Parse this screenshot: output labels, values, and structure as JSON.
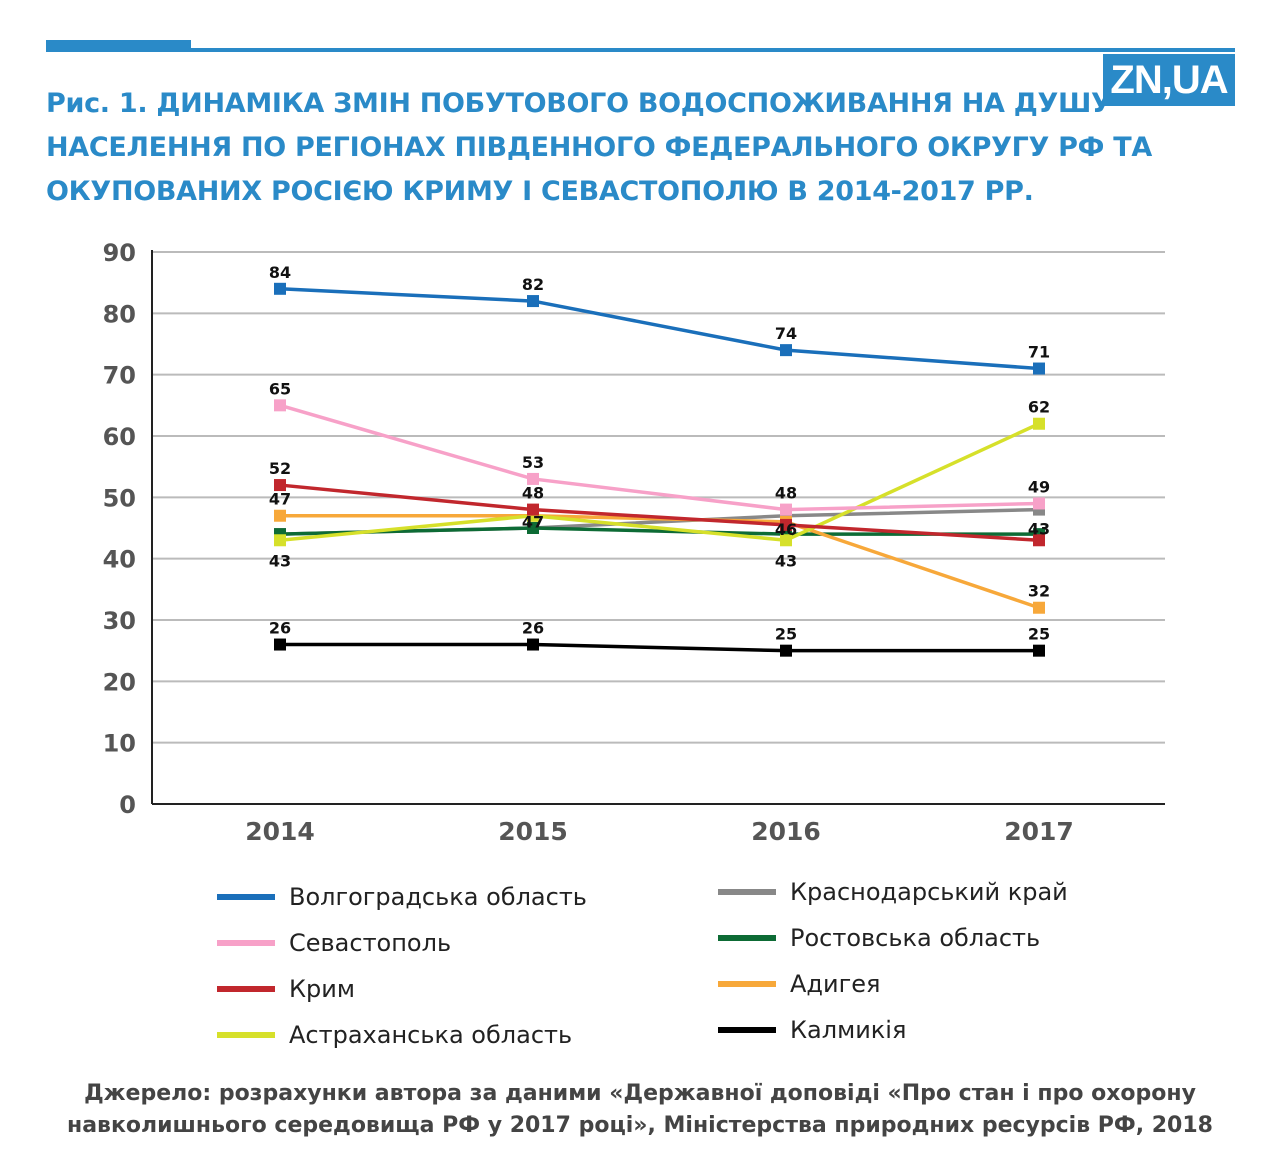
{
  "header": {
    "logo": "ZN,UA",
    "title": "Рис. 1. ДИНАМІКА ЗМІН ПОБУТОВОГО ВОДОСПОЖИВАННЯ НА ДУШУ НАСЕЛЕННЯ ПО РЕГІОНАХ ПІВДЕННОГО ФЕДЕРАЛЬНОГО ОКРУГУ РФ ТА ОКУПОВАНИХ РОСІЄЮ КРИМУ І СЕВАСТОПОЛЮ В 2014-2017 РР."
  },
  "chart_data": {
    "type": "line",
    "title": "Рис. 1. Динаміка змін побутового водоспоживання на душу населення по регіонах Південного федерального округу РФ та окупованих Росією Криму і Севастополю в 2014-2017 рр.",
    "categories": [
      "2014",
      "2015",
      "2016",
      "2017"
    ],
    "ylim": [
      0,
      90
    ],
    "yticks": [
      "0",
      "10",
      "20",
      "30",
      "40",
      "50",
      "60",
      "70",
      "80",
      "90"
    ],
    "grid": true,
    "legend_position": "bottom",
    "series": [
      {
        "name": "Волгоградська область",
        "color": "#1a6fba",
        "values": [
          84,
          82,
          74,
          71
        ],
        "labels": [
          "84",
          "82",
          "74",
          "71"
        ]
      },
      {
        "name": "Севастополь",
        "color": "#f7a1c8",
        "values": [
          65,
          53,
          48,
          49
        ],
        "labels": [
          "65",
          "53",
          "48",
          "49"
        ]
      },
      {
        "name": "Крим",
        "color": "#c1272d",
        "values": [
          52,
          48,
          45.5,
          43
        ],
        "labels": [
          "52",
          "48",
          null,
          "43"
        ]
      },
      {
        "name": "Астраханська область",
        "color": "#d6e02a",
        "values": [
          43,
          47,
          43,
          62
        ],
        "labels": [
          "43",
          null,
          "43",
          "62"
        ]
      },
      {
        "name": "Краснодарський край",
        "color": "#888888",
        "values": [
          44,
          45,
          47,
          48
        ],
        "labels": [
          null,
          null,
          null,
          null
        ]
      },
      {
        "name": "Ростовська область",
        "color": "#0d6b35",
        "values": [
          44,
          45,
          44,
          44
        ],
        "labels": [
          null,
          null,
          null,
          null
        ]
      },
      {
        "name": "Адигея",
        "color": "#f7a83a",
        "values": [
          47,
          47,
          46,
          32
        ],
        "labels": [
          "47",
          "47",
          "46",
          "32"
        ]
      },
      {
        "name": "Калмикія",
        "color": "#000000",
        "values": [
          26,
          26,
          25,
          25
        ],
        "labels": [
          "26",
          "26",
          "25",
          "25"
        ]
      }
    ]
  },
  "source": [
    "Джерело: розрахунки автора за даними «Державної доповіді «Про стан і про охорону",
    "навколишнього середовища РФ у 2017 році», Міністерства природних ресурсів РФ, 2018"
  ]
}
